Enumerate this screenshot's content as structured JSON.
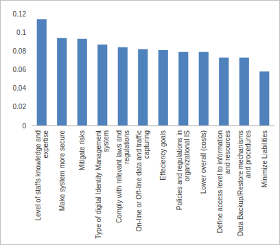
{
  "chart_data": {
    "type": "bar",
    "categories": [
      "Level of staffs knowledge and expertise",
      "Make system more secure",
      "Mitigate risks",
      "Type of digital Identity Management system",
      "Comply with relevant laws and regulations",
      "On-line or Off-line data and traffic capturing",
      "Effeciency goals",
      "Policies and regulations in organizational IS",
      "Lower overall (costs)",
      "Define access level to information and resources",
      "Data Backup/Restore mechanisms and procedures",
      "Minimize Liabilities"
    ],
    "values": [
      0.114,
      0.094,
      0.093,
      0.087,
      0.084,
      0.082,
      0.081,
      0.079,
      0.079,
      0.073,
      0.073,
      0.058
    ],
    "color": "#4f81bd",
    "ylim": [
      0,
      0.12
    ],
    "yticks": [
      0,
      0.02,
      0.04,
      0.06,
      0.08,
      0.1,
      0.12
    ],
    "grid": false
  }
}
